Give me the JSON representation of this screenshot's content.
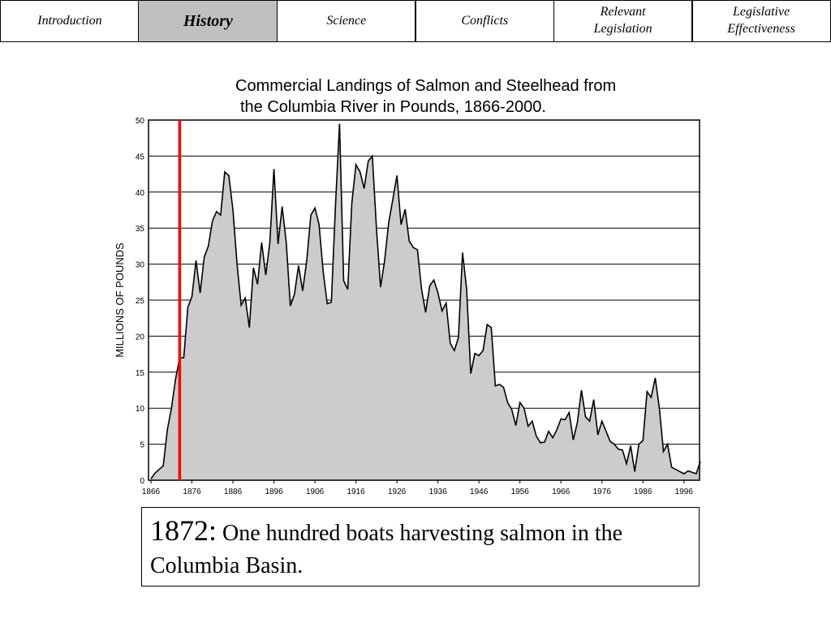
{
  "nav": {
    "tabs": [
      "Introduction",
      "History",
      "Science",
      "Conflicts",
      "Relevant Legislation",
      "Legislative Effectiveness"
    ],
    "active": 1
  },
  "chart_data": {
    "type": "area",
    "title": [
      "Commercial Landings of Salmon and Steelhead from",
      "the Columbia River in Pounds, 1866-2000."
    ],
    "y_label": "MILLIONS OF POUNDS",
    "x": [
      1866,
      1867,
      1868,
      1869,
      1870,
      1871,
      1872,
      1873,
      1874,
      1875,
      1876,
      1877,
      1878,
      1879,
      1880,
      1881,
      1882,
      1883,
      1884,
      1885,
      1886,
      1887,
      1888,
      1889,
      1890,
      1891,
      1892,
      1893,
      1894,
      1895,
      1896,
      1897,
      1898,
      1899,
      1900,
      1901,
      1902,
      1903,
      1904,
      1905,
      1906,
      1907,
      1908,
      1909,
      1910,
      1911,
      1912,
      1913,
      1914,
      1915,
      1916,
      1917,
      1918,
      1919,
      1920,
      1921,
      1922,
      1923,
      1924,
      1925,
      1926,
      1927,
      1928,
      1929,
      1930,
      1931,
      1932,
      1933,
      1934,
      1935,
      1936,
      1937,
      1938,
      1939,
      1940,
      1941,
      1942,
      1943,
      1944,
      1945,
      1946,
      1947,
      1948,
      1949,
      1950,
      1951,
      1952,
      1953,
      1954,
      1955,
      1956,
      1957,
      1958,
      1959,
      1960,
      1961,
      1962,
      1963,
      1964,
      1965,
      1966,
      1967,
      1968,
      1969,
      1970,
      1971,
      1972,
      1973,
      1974,
      1975,
      1976,
      1977,
      1978,
      1979,
      1980,
      1981,
      1982,
      1983,
      1984,
      1985,
      1986,
      1987,
      1988,
      1989,
      1990,
      1991,
      1992,
      1993,
      1994,
      1995,
      1996,
      1997,
      1998,
      1999,
      2000
    ],
    "values": [
      0.2,
      1,
      1.5,
      2,
      7,
      10,
      14,
      17,
      17,
      24,
      25.5,
      30.5,
      26,
      31,
      32.5,
      36,
      37.3,
      36.8,
      42.8,
      42.3,
      37.5,
      30,
      24.3,
      25.3,
      21.2,
      29.5,
      27.2,
      33,
      28.5,
      33,
      43.2,
      32.8,
      38,
      33,
      24.2,
      25.8,
      29.8,
      26.3,
      30.5,
      36.8,
      37.8,
      35.5,
      29,
      24.5,
      24.7,
      38,
      49.5,
      27.7,
      26.5,
      38.5,
      43.8,
      42.8,
      40.5,
      44.3,
      45,
      35,
      26.8,
      30.5,
      35.8,
      39,
      42.3,
      35.5,
      37.6,
      33.2,
      32.3,
      32,
      26.5,
      23.3,
      27,
      27.8,
      26,
      23.5,
      24.6,
      19,
      18,
      19.8,
      31.6,
      26.5,
      14.8,
      17.6,
      17.3,
      18,
      21.6,
      21.2,
      13.1,
      13.3,
      12.9,
      10.8,
      9.8,
      7.6,
      10.8,
      10,
      7.5,
      8.2,
      6.1,
      5.2,
      5.3,
      6.8,
      5.9,
      7,
      8.5,
      8.4,
      9.4,
      5.6,
      8,
      12.5,
      8.8,
      8.2,
      11.2,
      6.3,
      8.2,
      6.8,
      5.4,
      5,
      4.3,
      4.2,
      2.3,
      4.8,
      1.2,
      5,
      5.5,
      12.3,
      11.5,
      14.2,
      10,
      4,
      5,
      1.8,
      1.5,
      1.2,
      0.9,
      1.3,
      1.1,
      0.9,
      2.6
    ],
    "color": "#cccccc",
    "line_color": "#000000",
    "xlim": [
      1866,
      2000
    ],
    "xticks": [
      1866,
      1876,
      1886,
      1896,
      1906,
      1916,
      1926,
      1936,
      1946,
      1956,
      1966,
      1976,
      1986,
      1996
    ],
    "ylim": [
      0,
      50
    ],
    "yticks": [
      0,
      5,
      10,
      15,
      20,
      25,
      30,
      35,
      40,
      45,
      50
    ],
    "grid": true,
    "highlight_x": 1873,
    "highlight_color": "#ff0000"
  },
  "caption": {
    "lead": "1872:",
    "text": "One hundred boats harvesting salmon in the Columbia Basin."
  }
}
